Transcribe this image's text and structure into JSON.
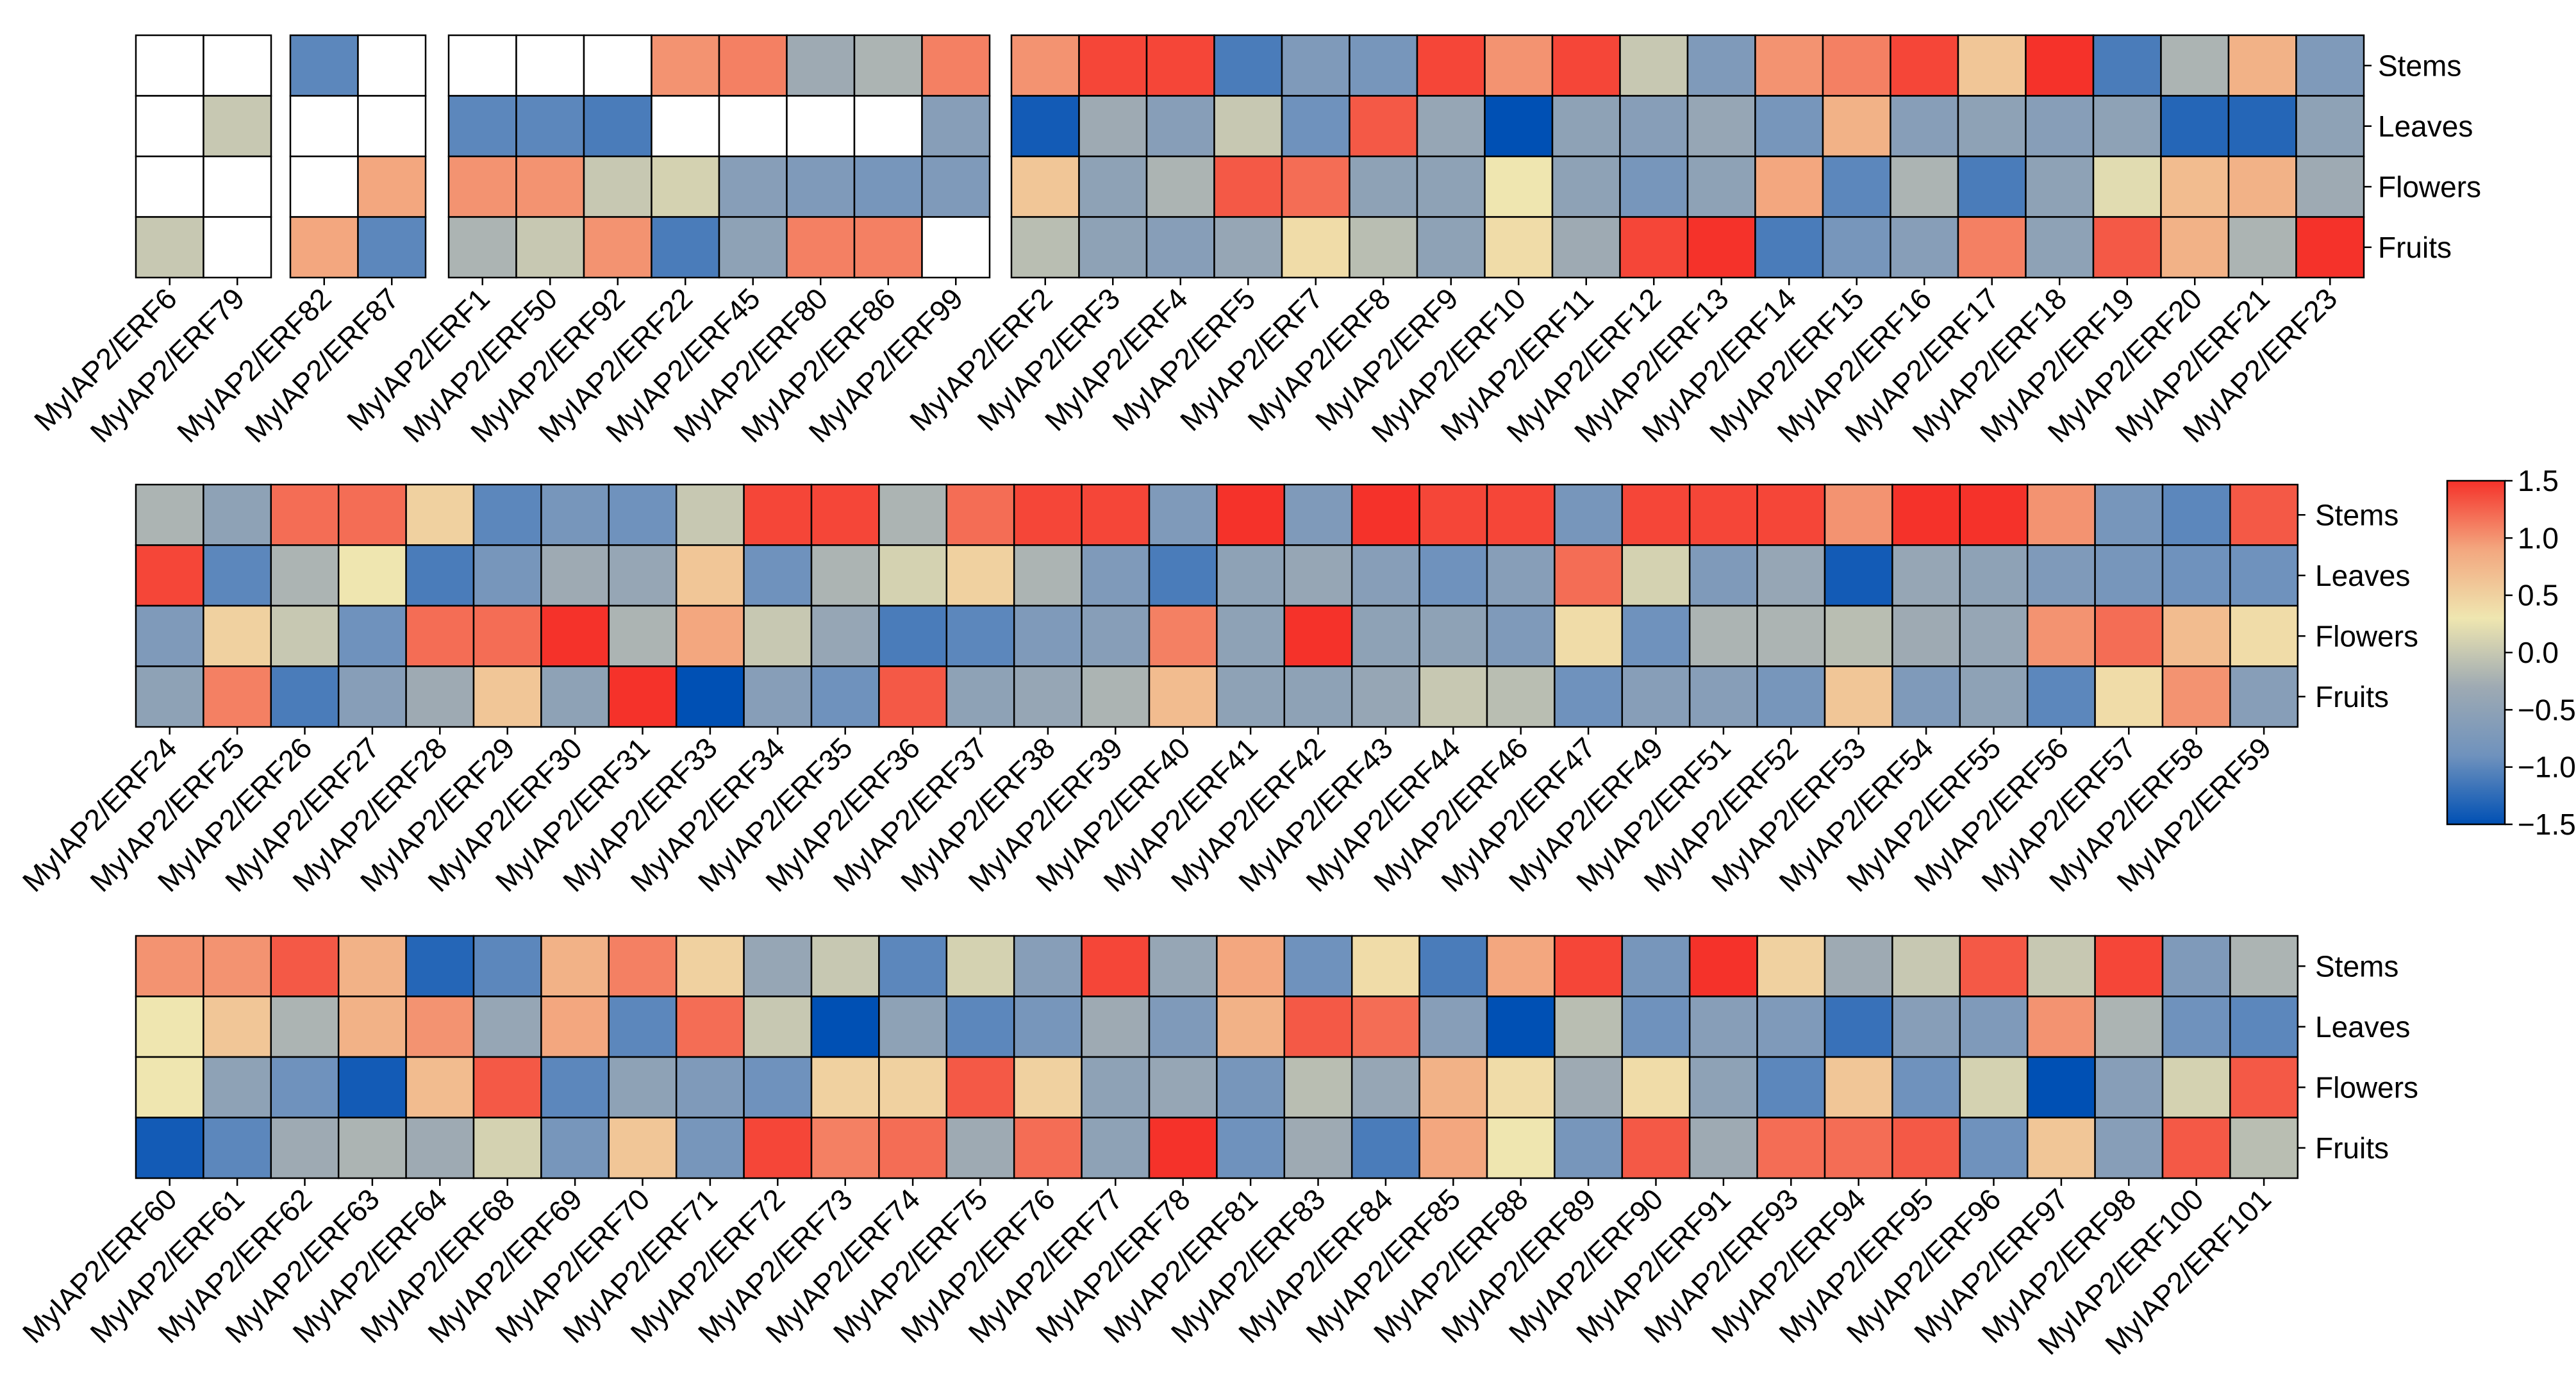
{
  "chart_data": {
    "type": "heatmap",
    "title": "",
    "row_labels": [
      "Stems",
      "Leaves",
      "Flowers",
      "Fruits"
    ],
    "colorbar": {
      "vmin": -1.5,
      "vmax": 1.5,
      "ticks": [
        "1.5",
        "1.0",
        "0.5",
        "0.0",
        "−0.5",
        "−1.0",
        "−1.5"
      ],
      "tick_values": [
        1.5,
        1.0,
        0.5,
        0.0,
        -0.5,
        -1.0,
        -1.5
      ],
      "colors": [
        "#0050b4",
        "#6f92bd",
        "#9eaab3",
        "#efe6b0",
        "#f3a77f",
        "#f5322a"
      ]
    },
    "missing_color": "#ffffff",
    "panels": [
      {
        "genes": [
          "MyIAP2/ERF6",
          "MyIAP2/ERF79"
        ],
        "values": [
          [
            null,
            null
          ],
          [
            null,
            0.0
          ],
          [
            null,
            null
          ],
          [
            0.0,
            null
          ]
        ]
      },
      {
        "genes": [
          "MyIAP2/ERF82",
          "MyIAP2/ERF87"
        ],
        "values": [
          [
            -1.0,
            null
          ],
          [
            null,
            null
          ],
          [
            null,
            0.9
          ],
          [
            0.9,
            -1.0
          ]
        ]
      },
      {
        "genes": [
          "MyIAP2/ERF1",
          "MyIAP2/ERF50",
          "MyIAP2/ERF92",
          "MyIAP2/ERF22",
          "MyIAP2/ERF45",
          "MyIAP2/ERF80",
          "MyIAP2/ERF86",
          "MyIAP2/ERF99"
        ],
        "values": [
          [
            null,
            null,
            null,
            1.0,
            1.1,
            -0.3,
            -0.2,
            1.1
          ],
          [
            -1.0,
            -1.0,
            -1.1,
            null,
            null,
            null,
            null,
            -0.6
          ],
          [
            1.0,
            1.0,
            0.0,
            0.1,
            -0.6,
            -0.7,
            -0.8,
            -0.7
          ],
          [
            -0.2,
            0.0,
            1.0,
            -1.1,
            -0.5,
            1.1,
            1.1,
            null
          ]
        ]
      },
      {
        "genes": [
          "MyIAP2/ERF2",
          "MyIAP2/ERF3",
          "MyIAP2/ERF4",
          "MyIAP2/ERF5",
          "MyIAP2/ERF7",
          "MyIAP2/ERF8",
          "MyIAP2/ERF9",
          "MyIAP2/ERF10",
          "MyIAP2/ERF11",
          "MyIAP2/ERF12",
          "MyIAP2/ERF13",
          "MyIAP2/ERF14",
          "MyIAP2/ERF15",
          "MyIAP2/ERF16",
          "MyIAP2/ERF17",
          "MyIAP2/ERF18",
          "MyIAP2/ERF19",
          "MyIAP2/ERF20",
          "MyIAP2/ERF21",
          "MyIAP2/ERF23"
        ],
        "values": [
          [
            1.0,
            1.4,
            1.4,
            -1.1,
            -0.7,
            -0.8,
            1.4,
            1.0,
            1.4,
            0.0,
            -0.7,
            1.0,
            1.1,
            1.4,
            0.6,
            1.5,
            -1.1,
            -0.2,
            0.8,
            -0.7
          ],
          [
            -1.4,
            -0.3,
            -0.6,
            0.0,
            -0.9,
            1.3,
            -0.4,
            -1.5,
            -0.5,
            -0.6,
            -0.4,
            -0.8,
            0.8,
            -0.6,
            -0.5,
            -0.6,
            -0.5,
            -1.3,
            -1.3,
            -0.5
          ],
          [
            0.6,
            -0.5,
            -0.2,
            1.3,
            1.2,
            -0.5,
            -0.5,
            0.3,
            -0.5,
            -0.8,
            -0.5,
            0.9,
            -1.0,
            -0.2,
            -1.1,
            -0.5,
            0.2,
            0.7,
            0.8,
            -0.3
          ],
          [
            -0.1,
            -0.5,
            -0.6,
            -0.4,
            0.4,
            -0.1,
            -0.5,
            0.4,
            -0.3,
            1.4,
            1.5,
            -1.1,
            -0.8,
            -0.6,
            1.1,
            -0.5,
            1.3,
            0.8,
            -0.2,
            1.5
          ]
        ]
      },
      {
        "genes": [
          "MyIAP2/ERF24",
          "MyIAP2/ERF25",
          "MyIAP2/ERF26",
          "MyIAP2/ERF27",
          "MyIAP2/ERF28",
          "MyIAP2/ERF29",
          "MyIAP2/ERF30",
          "MyIAP2/ERF31",
          "MyIAP2/ERF33",
          "MyIAP2/ERF34",
          "MyIAP2/ERF35",
          "MyIAP2/ERF36",
          "MyIAP2/ERF37",
          "MyIAP2/ERF38",
          "MyIAP2/ERF39",
          "MyIAP2/ERF40",
          "MyIAP2/ERF41",
          "MyIAP2/ERF42",
          "MyIAP2/ERF43",
          "MyIAP2/ERF44",
          "MyIAP2/ERF46",
          "MyIAP2/ERF47",
          "MyIAP2/ERF49",
          "MyIAP2/ERF51",
          "MyIAP2/ERF52",
          "MyIAP2/ERF53",
          "MyIAP2/ERF54",
          "MyIAP2/ERF55",
          "MyIAP2/ERF56",
          "MyIAP2/ERF57",
          "MyIAP2/ERF58",
          "MyIAP2/ERF59"
        ],
        "values": [
          [
            -0.2,
            -0.5,
            1.2,
            1.2,
            0.5,
            -1.0,
            -0.8,
            -0.9,
            0.0,
            1.4,
            1.4,
            -0.2,
            1.2,
            1.4,
            1.4,
            -0.7,
            1.5,
            -0.7,
            1.5,
            1.4,
            1.4,
            -0.8,
            1.4,
            1.4,
            1.4,
            1.0,
            1.5,
            1.5,
            1.0,
            -0.8,
            -1.0,
            1.3
          ],
          [
            1.4,
            -1.0,
            -0.2,
            0.3,
            -1.1,
            -0.8,
            -0.3,
            -0.4,
            0.6,
            -0.9,
            -0.2,
            0.1,
            0.5,
            -0.2,
            -0.7,
            -1.1,
            -0.5,
            -0.4,
            -0.6,
            -0.9,
            -0.6,
            1.2,
            0.1,
            -0.7,
            -0.4,
            -1.4,
            -0.4,
            -0.5,
            -0.7,
            -0.8,
            -0.9,
            -0.9
          ],
          [
            -0.7,
            0.5,
            0.0,
            -0.9,
            1.2,
            1.2,
            1.5,
            -0.2,
            0.9,
            0.0,
            -0.4,
            -1.1,
            -1.0,
            -0.7,
            -0.6,
            1.1,
            -0.5,
            1.5,
            -0.5,
            -0.5,
            -0.7,
            0.4,
            -0.9,
            -0.2,
            -0.2,
            -0.1,
            -0.3,
            -0.4,
            1.0,
            1.2,
            0.7,
            0.4
          ],
          [
            -0.5,
            1.1,
            -1.1,
            -0.6,
            -0.3,
            0.6,
            -0.5,
            1.5,
            -1.5,
            -0.6,
            -0.9,
            1.3,
            -0.5,
            -0.4,
            -0.2,
            0.7,
            -0.5,
            -0.5,
            -0.4,
            0.0,
            -0.1,
            -0.9,
            -0.6,
            -0.6,
            -0.8,
            0.6,
            -0.7,
            -0.5,
            -1.0,
            0.4,
            1.0,
            -0.6
          ]
        ]
      },
      {
        "genes": [
          "MyIAP2/ERF60",
          "MyIAP2/ERF61",
          "MyIAP2/ERF62",
          "MyIAP2/ERF63",
          "MyIAP2/ERF64",
          "MyIAP2/ERF68",
          "MyIAP2/ERF69",
          "MyIAP2/ERF70",
          "MyIAP2/ERF71",
          "MyIAP2/ERF72",
          "MyIAP2/ERF73",
          "MyIAP2/ERF74",
          "MyIAP2/ERF75",
          "MyIAP2/ERF76",
          "MyIAP2/ERF77",
          "MyIAP2/ERF78",
          "MyIAP2/ERF81",
          "MyIAP2/ERF83",
          "MyIAP2/ERF84",
          "MyIAP2/ERF85",
          "MyIAP2/ERF88",
          "MyIAP2/ERF89",
          "MyIAP2/ERF90",
          "MyIAP2/ERF91",
          "MyIAP2/ERF93",
          "MyIAP2/ERF94",
          "MyIAP2/ERF95",
          "MyIAP2/ERF96",
          "MyIAP2/ERF97",
          "MyIAP2/ERF98",
          "MyIAP2/ERF100",
          "MyIAP2/ERF101"
        ],
        "values": [
          [
            1.0,
            1.0,
            1.3,
            0.8,
            -1.3,
            -1.0,
            0.8,
            1.1,
            0.5,
            -0.4,
            0.0,
            -1.0,
            0.1,
            -0.6,
            1.4,
            -0.4,
            0.9,
            -0.9,
            0.4,
            -1.1,
            0.9,
            1.4,
            -0.8,
            1.5,
            0.5,
            -0.3,
            0.0,
            1.3,
            0.0,
            1.4,
            -0.7,
            -0.2
          ],
          [
            0.3,
            0.6,
            -0.2,
            0.8,
            1.0,
            -0.4,
            0.9,
            -1.0,
            1.2,
            0.0,
            -1.5,
            -0.5,
            -1.0,
            -0.8,
            -0.3,
            -0.7,
            0.8,
            1.3,
            1.2,
            -0.6,
            -1.5,
            -0.1,
            -0.9,
            -0.6,
            -0.7,
            -1.2,
            -0.6,
            -0.7,
            1.0,
            -0.2,
            -0.9,
            -1.0
          ],
          [
            0.3,
            -0.5,
            -0.9,
            -1.4,
            0.7,
            1.3,
            -1.0,
            -0.5,
            -0.7,
            -0.9,
            0.5,
            0.5,
            1.3,
            0.5,
            -0.5,
            -0.4,
            -0.8,
            -0.1,
            -0.4,
            0.8,
            0.4,
            -0.3,
            0.4,
            -0.5,
            -1.0,
            0.6,
            -0.9,
            0.1,
            -1.5,
            -0.6,
            0.1,
            1.3
          ],
          [
            -1.4,
            -1.0,
            -0.3,
            -0.2,
            -0.3,
            0.1,
            -0.8,
            0.6,
            -0.8,
            1.4,
            1.1,
            1.2,
            -0.3,
            1.2,
            -0.5,
            1.5,
            -0.9,
            -0.3,
            -1.1,
            0.9,
            0.3,
            -0.8,
            1.3,
            -0.3,
            1.2,
            1.2,
            1.3,
            -0.9,
            0.6,
            -0.6,
            1.3,
            -0.1
          ]
        ]
      }
    ]
  }
}
